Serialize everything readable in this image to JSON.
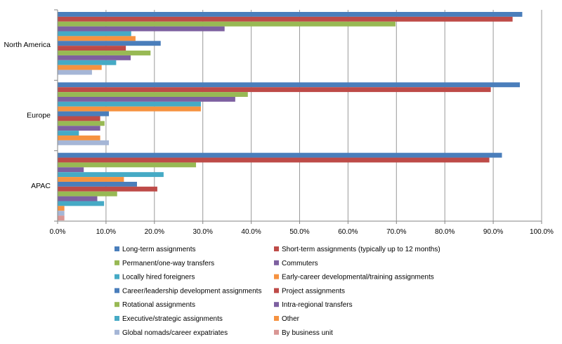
{
  "chart_data": {
    "type": "bar",
    "orientation": "horizontal",
    "title": "",
    "xlabel": "",
    "ylabel": "",
    "xlim": [
      0,
      100
    ],
    "x_ticks": [
      "0.0%",
      "10.0%",
      "20.0%",
      "30.0%",
      "40.0%",
      "50.0%",
      "60.0%",
      "70.0%",
      "80.0%",
      "90.0%",
      "100.0%"
    ],
    "grid": true,
    "legend_position": "bottom",
    "categories": [
      "North America",
      "Europe",
      "APAC"
    ],
    "series": [
      {
        "name": "Long-term assignments",
        "color": "#4A7EBB",
        "values": [
          96.0,
          95.5,
          91.8
        ]
      },
      {
        "name": "Short-term assignments (typically up to 12 months)",
        "color": "#BE4B48",
        "values": [
          94.0,
          89.5,
          89.2
        ]
      },
      {
        "name": "Permanent/one-way transfers",
        "color": "#98B954",
        "values": [
          69.8,
          39.3,
          28.6
        ]
      },
      {
        "name": "Commuters",
        "color": "#7D60A0",
        "values": [
          34.5,
          36.7,
          5.4
        ]
      },
      {
        "name": "Locally hired foreigners",
        "color": "#46AAC5",
        "values": [
          15.2,
          29.6,
          21.9
        ]
      },
      {
        "name": "Early-career developmental/training assignments",
        "color": "#F69240",
        "values": [
          16.1,
          29.6,
          13.7
        ]
      },
      {
        "name": "Career/leadership development assignments",
        "color": "#4A7EBB",
        "values": [
          21.3,
          10.6,
          16.4
        ]
      },
      {
        "name": "Project assignments",
        "color": "#BE4B48",
        "values": [
          14.1,
          8.8,
          20.6
        ]
      },
      {
        "name": "Rotational assignments",
        "color": "#98B954",
        "values": [
          19.2,
          9.7,
          12.3
        ]
      },
      {
        "name": "Intra-regional transfers",
        "color": "#7D60A0",
        "values": [
          15.1,
          8.8,
          8.2
        ]
      },
      {
        "name": "Executive/strategic assignments",
        "color": "#46AAC5",
        "values": [
          12.1,
          4.4,
          9.6
        ]
      },
      {
        "name": "Other",
        "color": "#F69240",
        "values": [
          9.1,
          8.8,
          1.4
        ]
      },
      {
        "name": "Global nomads/career expatriates",
        "color": "#A5B6D6",
        "values": [
          7.1,
          10.6,
          1.4
        ]
      },
      {
        "name": "By business unit",
        "color": "#D99694",
        "values": [
          0,
          0,
          1.4
        ]
      }
    ]
  }
}
